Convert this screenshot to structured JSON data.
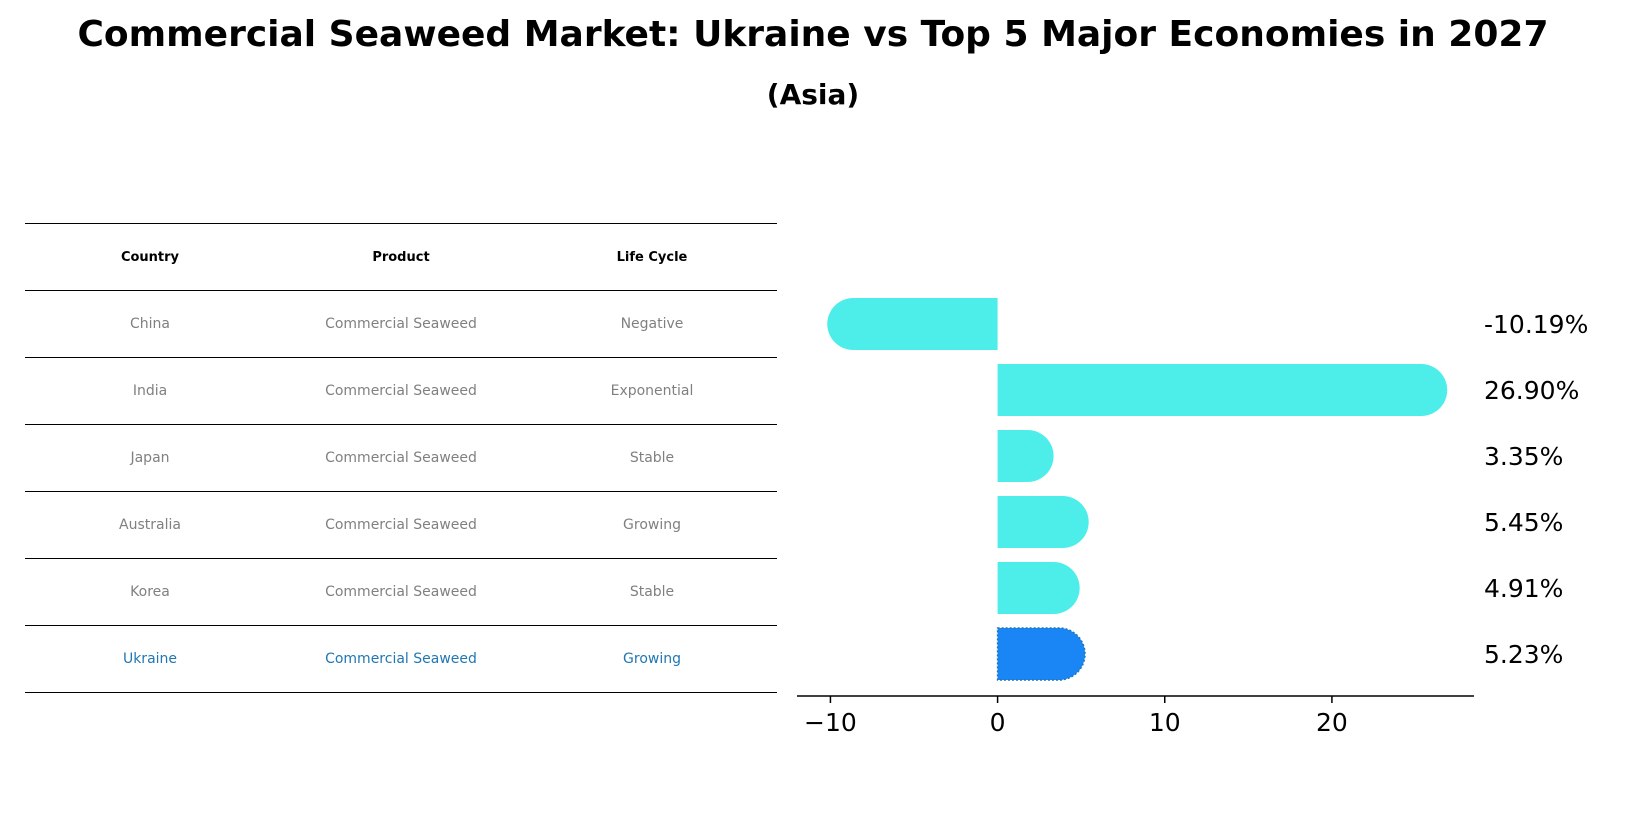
{
  "title": "Commercial Seaweed Market: Ukraine vs Top 5 Major Economies in 2027",
  "subtitle": "(Asia)",
  "table": {
    "headers": [
      "Country",
      "Product",
      "Life Cycle"
    ],
    "rows": [
      [
        "China",
        "Commercial Seaweed",
        "Negative"
      ],
      [
        "India",
        "Commercial Seaweed",
        "Exponential"
      ],
      [
        "Japan",
        "Commercial Seaweed",
        "Stable"
      ],
      [
        "Australia",
        "Commercial Seaweed",
        "Growing"
      ],
      [
        "Korea",
        "Commercial Seaweed",
        "Stable"
      ],
      [
        "Ukraine",
        "Commercial Seaweed",
        "Growing"
      ]
    ],
    "highlight_row": 5,
    "highlight_color": "#1f77b4"
  },
  "chart_data": {
    "type": "bar",
    "orientation": "horizontal",
    "categories": [
      "China",
      "India",
      "Japan",
      "Australia",
      "Korea",
      "Ukraine"
    ],
    "values": [
      -10.19,
      26.9,
      3.35,
      5.45,
      4.91,
      5.23
    ],
    "value_labels": [
      "-10.19%",
      "26.90%",
      "3.35%",
      "5.45%",
      "4.91%",
      "5.23%"
    ],
    "xlim": [
      -12,
      28.5
    ],
    "xticks": [
      -10,
      0,
      10,
      20
    ],
    "xtick_labels": [
      "−10",
      "0",
      "10",
      "20"
    ],
    "colors": {
      "default": "#4deeea",
      "highlight": "#1a86f5"
    },
    "highlight_index": 5,
    "grid": false
  }
}
